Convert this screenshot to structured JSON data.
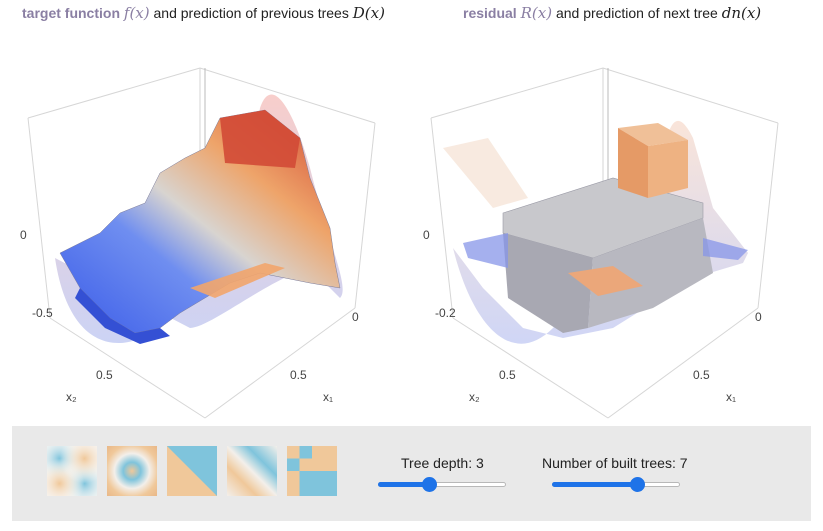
{
  "header_left": {
    "keyword": "target function",
    "math_f": "f(x)",
    "text": "and prediction of previous trees",
    "math_d": "D(x)"
  },
  "header_right": {
    "keyword": "residual",
    "math_r": "R(x)",
    "text": "and prediction of next tree",
    "math_dn": "dn(x)"
  },
  "plot_left": {
    "z_tick_top": "0",
    "z_tick_bottom": "-0.5",
    "x2_tick": "0.5",
    "x1_tick": "0.5",
    "x1_zero": "0",
    "x2_label": "x₂",
    "x1_label": "x₁"
  },
  "plot_right": {
    "z_tick_top": "0",
    "z_tick_bottom": "-0.2",
    "x2_tick": "0.5",
    "x1_tick": "0.5",
    "x1_zero": "0",
    "x2_label": "x₂",
    "x1_label": "x₁"
  },
  "controls": {
    "presets": [
      "preset-gaussian-quadrants",
      "preset-rings",
      "preset-diagonal-split",
      "preset-diagonal-blobs",
      "preset-checker"
    ],
    "tree_depth_label": "Tree depth: 3",
    "tree_depth_value": 3,
    "tree_depth_min": 1,
    "tree_depth_max": 6,
    "trees_label": "Number of built trees: 7",
    "trees_value": 7,
    "trees_min": 1,
    "trees_max": 10
  },
  "colors": {
    "accent": "#1e73e8",
    "warm": "#f0c89a",
    "cool": "#7fc4dc",
    "keyword": "#8a7fa3"
  }
}
